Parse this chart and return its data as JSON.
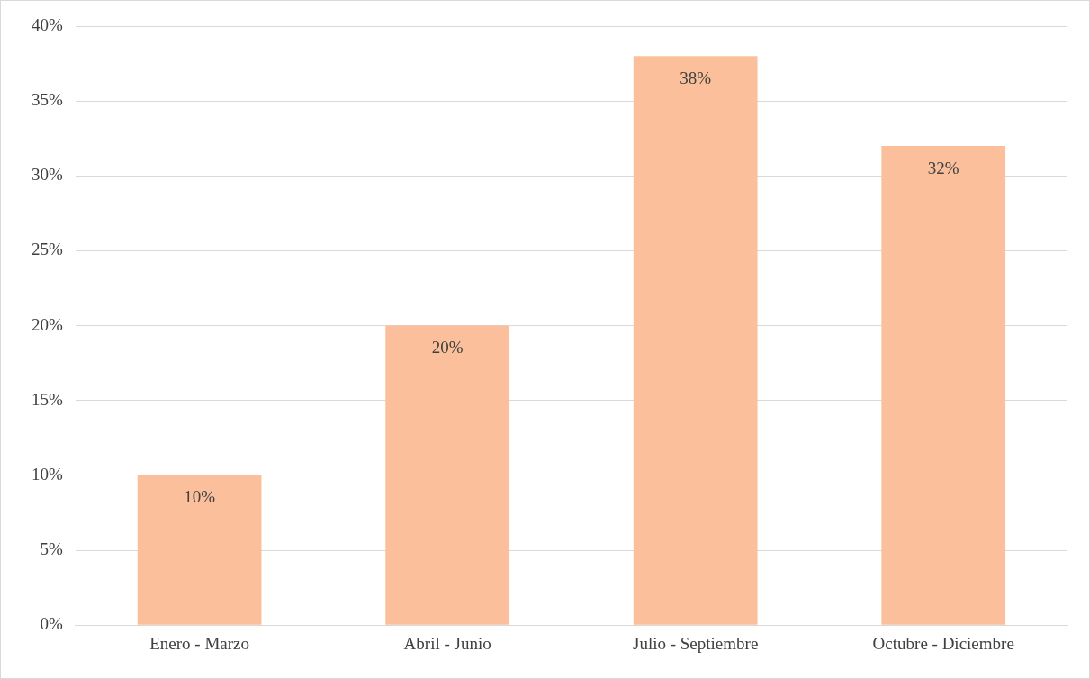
{
  "chart_data": {
    "type": "bar",
    "categories": [
      "Enero - Marzo",
      "Abril - Junio",
      "Julio - Septiembre",
      "Octubre - Diciembre"
    ],
    "values": [
      10,
      20,
      38,
      32
    ],
    "value_labels": [
      "10%",
      "20%",
      "38%",
      "32%"
    ],
    "color": "#fbc09b",
    "ylim": [
      0,
      40
    ],
    "yticks": [
      {
        "value": 0,
        "label": "0%"
      },
      {
        "value": 5,
        "label": "5%"
      },
      {
        "value": 10,
        "label": "10%"
      },
      {
        "value": 15,
        "label": "15%"
      },
      {
        "value": 20,
        "label": "20%"
      },
      {
        "value": 25,
        "label": "25%"
      },
      {
        "value": 30,
        "label": "30%"
      },
      {
        "value": 35,
        "label": "35%"
      },
      {
        "value": 40,
        "label": "40%"
      }
    ],
    "grid": "y",
    "legend": false
  }
}
